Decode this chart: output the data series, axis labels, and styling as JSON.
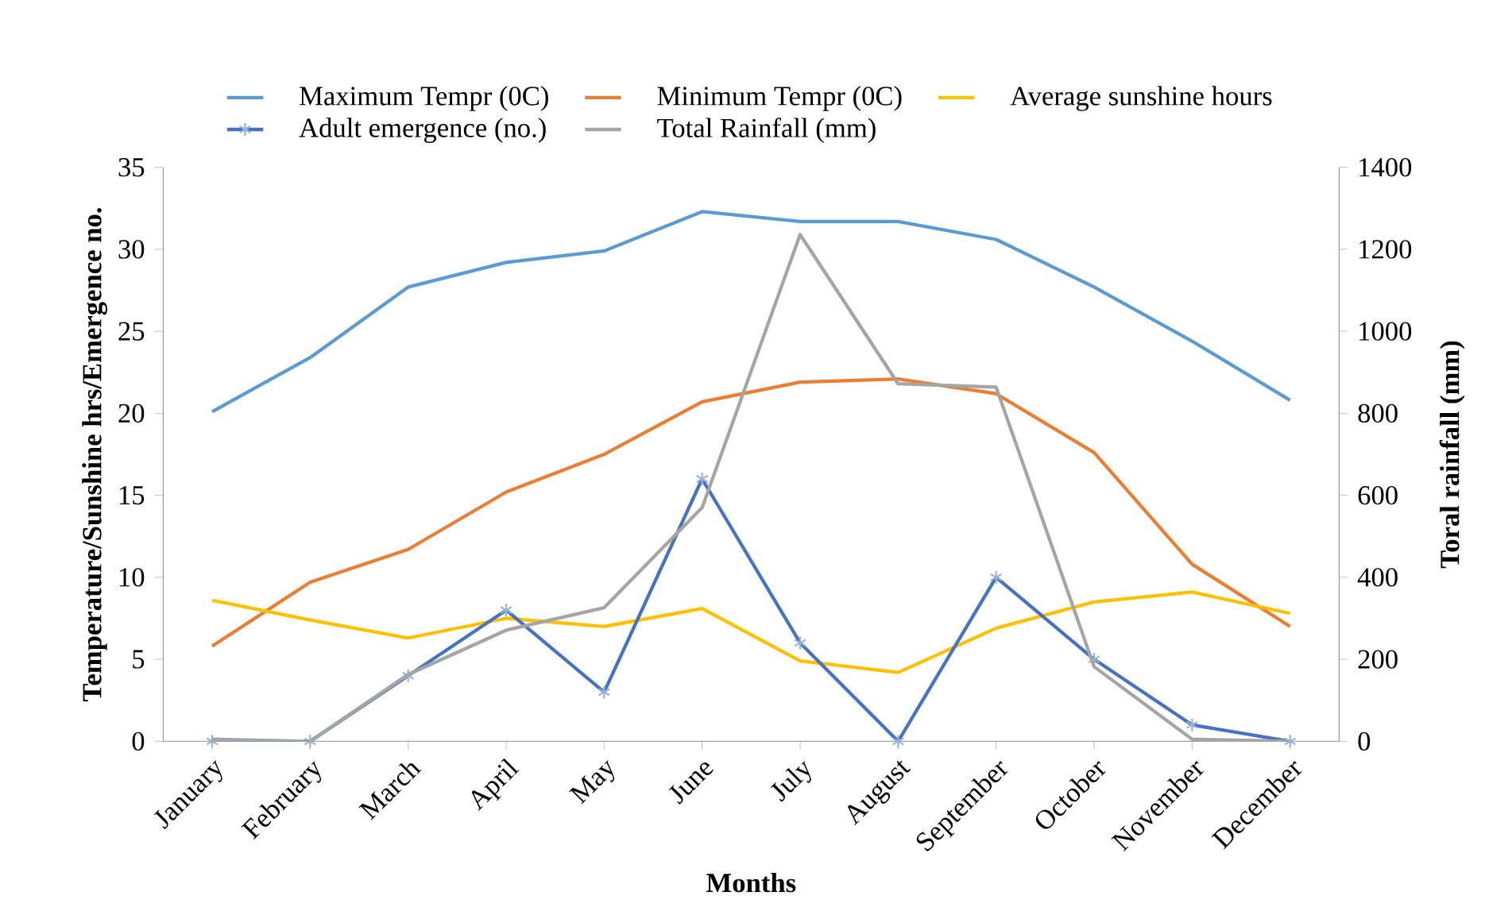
{
  "chart_data": {
    "type": "line",
    "categories": [
      "January",
      "February",
      "March",
      "April",
      "May",
      "June",
      "July",
      "August",
      "September",
      "October",
      "November",
      "December"
    ],
    "series": [
      {
        "name": "Maximum Tempr (0C)",
        "color": "#5b9bd5",
        "values": [
          20.1,
          23.4,
          27.7,
          29.2,
          29.9,
          32.3,
          31.7,
          31.7,
          30.6,
          27.7,
          24.4,
          20.8
        ]
      },
      {
        "name": "Minimum Tempr (0C)",
        "color": "#ed7d31",
        "values": [
          5.8,
          9.7,
          11.7,
          15.2,
          17.5,
          20.7,
          21.9,
          22.1,
          21.2,
          17.6,
          10.8,
          7.0
        ]
      },
      {
        "name": "Average sunshine hours",
        "color": "#ffc000",
        "values": [
          8.6,
          7.4,
          6.3,
          7.5,
          7.0,
          8.1,
          4.9,
          4.2,
          6.9,
          8.5,
          9.1,
          7.8
        ]
      },
      {
        "name": "Adult emergence (no.)",
        "color": "#4472c4",
        "marker": "cross",
        "values": [
          0,
          0,
          4,
          8,
          3,
          16,
          6,
          0,
          10,
          5,
          1,
          0
        ]
      },
      {
        "name": "Total Rainfall (mm)",
        "color": "#a5a5a5",
        "axis": "y2",
        "values": [
          5,
          0,
          163,
          271,
          326,
          570,
          1236,
          872,
          864,
          182,
          5,
          0
        ]
      }
    ],
    "xlabel": "Months",
    "ylabel": "Temperature/Sunshine  hrs/Emergence no.",
    "y2label": "Toral rainfall (mm)",
    "ylim": [
      0,
      35
    ],
    "yticks": [
      0,
      5,
      10,
      15,
      20,
      25,
      30,
      35
    ],
    "y2lim": [
      0,
      1400
    ],
    "y2ticks": [
      0,
      200,
      400,
      600,
      800,
      1000,
      1200,
      1400
    ],
    "grid": false,
    "legend": "top"
  }
}
